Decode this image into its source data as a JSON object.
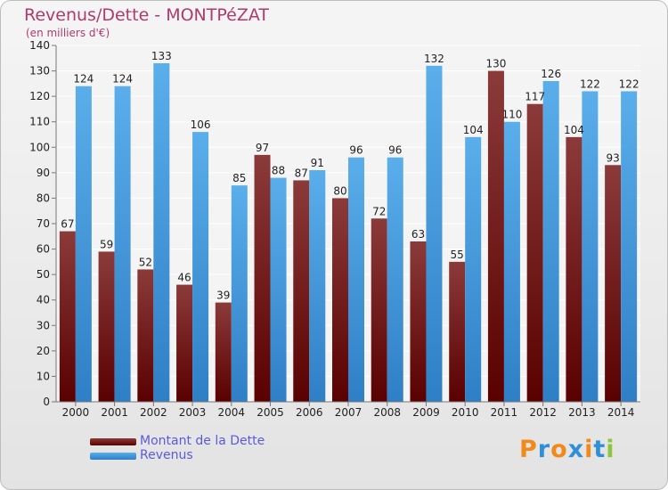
{
  "header": {
    "title": "Revenus/Dette - MONTPéZAT",
    "subtitle": "(en milliers d'€)"
  },
  "colors": {
    "title": "#b03a6b",
    "debt_top": "#8b3a3a",
    "debt_bottom": "#5a0000",
    "revenue_top": "#5aaeea",
    "revenue_bottom": "#2f7fc6"
  },
  "chart_data": {
    "type": "bar",
    "title": "Revenus/Dette - MONTPéZAT",
    "subtitle": "(en milliers d'€)",
    "xlabel": "",
    "ylabel": "",
    "categories": [
      "2000",
      "2001",
      "2002",
      "2003",
      "2004",
      "2005",
      "2006",
      "2007",
      "2008",
      "2009",
      "2010",
      "2011",
      "2012",
      "2013",
      "2014"
    ],
    "ylim": [
      0,
      140
    ],
    "yticks": [
      0,
      10,
      20,
      30,
      40,
      50,
      60,
      70,
      80,
      90,
      100,
      110,
      120,
      130,
      140
    ],
    "grid": true,
    "legend_position": "bottom-left",
    "series": [
      {
        "name": "Montant de la Dette",
        "color": "#6b1414",
        "values": [
          67,
          59,
          52,
          46,
          39,
          97,
          87,
          80,
          72,
          63,
          55,
          130,
          117,
          104,
          93
        ]
      },
      {
        "name": "Revenus",
        "color": "#4a9ee0",
        "values": [
          124,
          124,
          133,
          106,
          85,
          88,
          91,
          96,
          96,
          132,
          104,
          110,
          126,
          122,
          122
        ]
      }
    ]
  },
  "legend": {
    "items": [
      {
        "label": "Montant de la Dette",
        "color": "#6b1414",
        "text_color": "#5a5ae0"
      },
      {
        "label": "Revenus",
        "color": "#4a9ee0",
        "text_color": "#5a5ae0"
      }
    ]
  },
  "logo": {
    "text": "Proxiti",
    "letter_colors": [
      "#f08a1c",
      "#2f8fd8",
      "#f08a1c",
      "#2f8fd8",
      "#f08a1c",
      "#2f8fd8",
      "#8cc63f"
    ]
  }
}
